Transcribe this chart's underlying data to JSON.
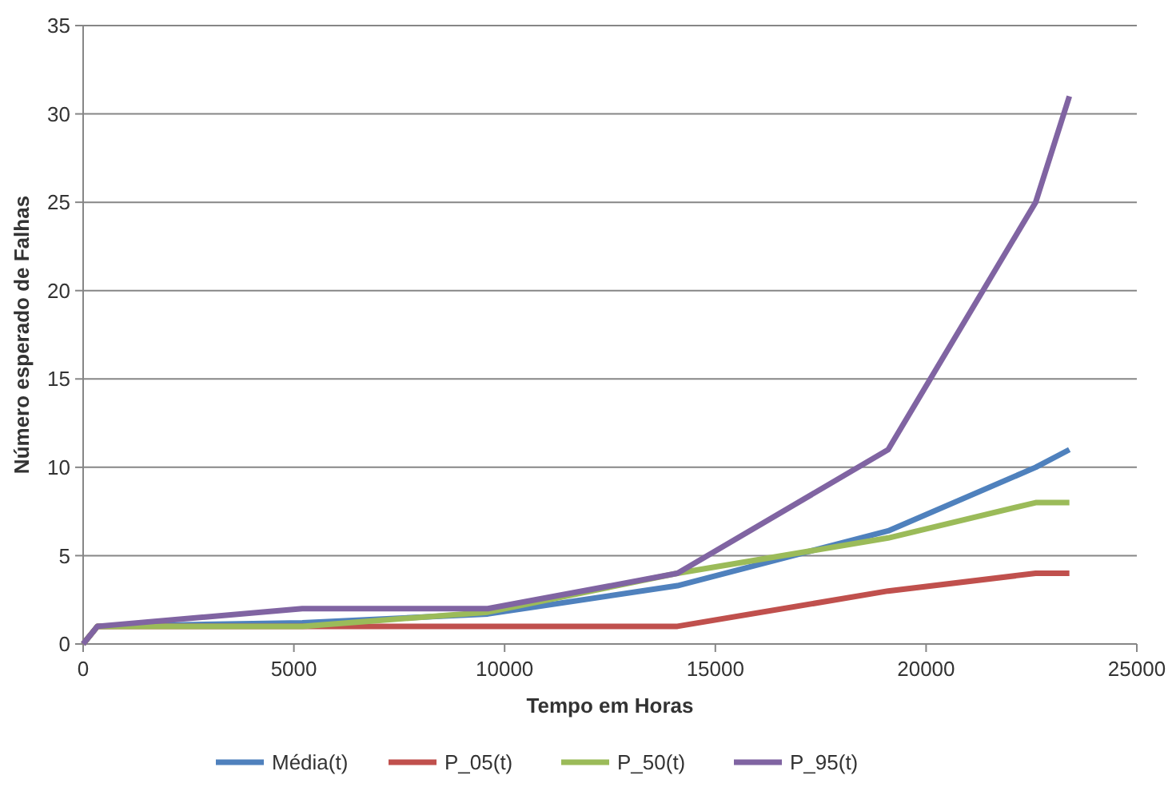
{
  "chart_data": {
    "type": "line",
    "xlabel": "Tempo em Horas",
    "ylabel": "Número esperado de Falhas",
    "x": [
      0,
      340,
      5200,
      9600,
      14100,
      19100,
      22600,
      23400
    ],
    "series": [
      {
        "name": "Média(t)",
        "color": "#4f81bd",
        "values": [
          0,
          1,
          1.2,
          1.7,
          3.3,
          6.4,
          10,
          11
        ]
      },
      {
        "name": "P_05(t)",
        "color": "#c0504d",
        "values": [
          0,
          1,
          1,
          1,
          1,
          3,
          4,
          4
        ]
      },
      {
        "name": "P_50(t)",
        "color": "#9bbb59",
        "values": [
          0,
          1,
          1,
          1.8,
          4,
          6,
          8,
          8
        ]
      },
      {
        "name": "P_95(t)",
        "color": "#8064a2",
        "values": [
          0,
          1,
          2,
          2,
          4,
          11,
          25,
          31
        ]
      }
    ],
    "xlim": [
      0,
      25000
    ],
    "xticks": [
      0,
      5000,
      10000,
      15000,
      20000,
      25000
    ],
    "ylim": [
      0,
      35
    ],
    "yticks": [
      0,
      5,
      10,
      15,
      20,
      25,
      30,
      35
    ],
    "grid": "y",
    "legend": "bottom",
    "line_style": "solid"
  }
}
